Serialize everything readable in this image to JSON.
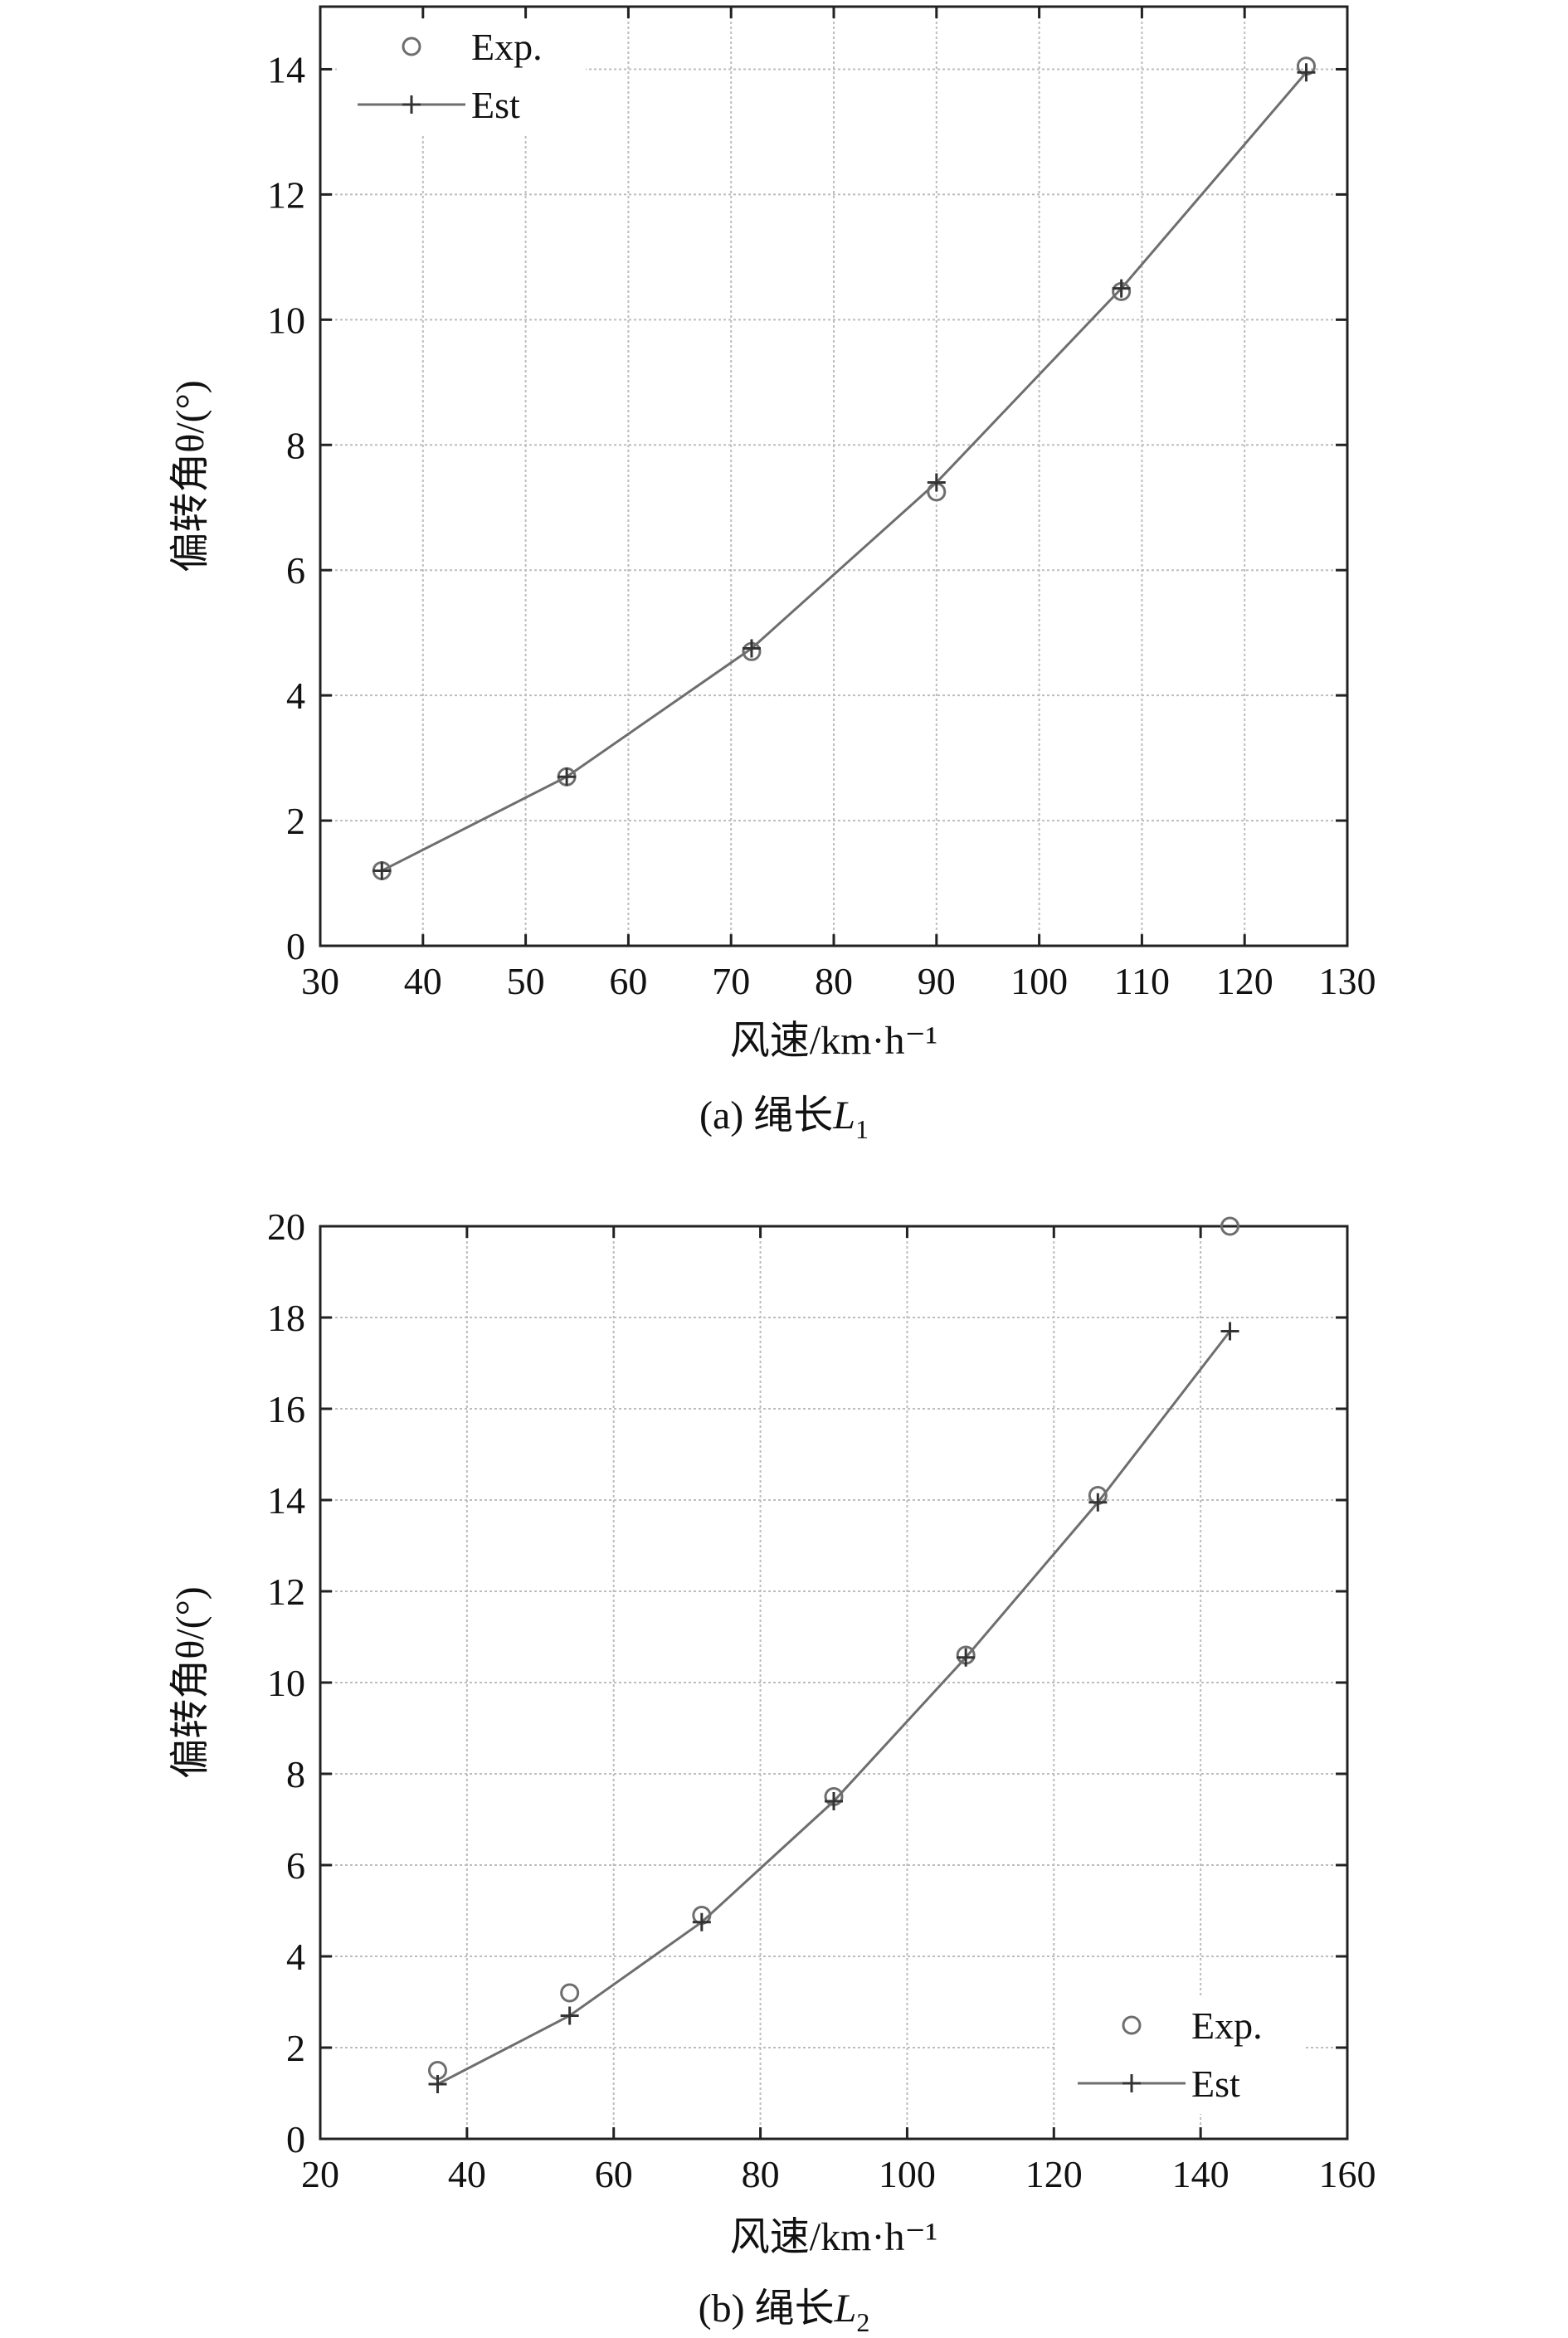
{
  "chart_data": [
    {
      "type": "line",
      "caption": "(a) 绳长L1",
      "caption_parts": {
        "prefix": "(a) 绳长",
        "var": "L",
        "sub": "1"
      },
      "xlabel": "风速/km·h⁻¹",
      "ylabel": "偏转角θ/(°)",
      "xlim": [
        30,
        130
      ],
      "ylim": [
        0,
        15
      ],
      "xticks": [
        30,
        40,
        50,
        60,
        70,
        80,
        90,
        100,
        110,
        120,
        130
      ],
      "yticks": [
        0,
        2,
        4,
        6,
        8,
        10,
        12,
        14
      ],
      "grid": true,
      "legend_position": "top-left",
      "series": [
        {
          "name": "Exp.",
          "marker": "circle",
          "line": false,
          "x": [
            36,
            54,
            72,
            90,
            108,
            126
          ],
          "y": [
            1.2,
            2.7,
            4.7,
            7.25,
            10.45,
            14.05
          ]
        },
        {
          "name": "Est",
          "marker": "plus",
          "line": true,
          "x": [
            36,
            54,
            72,
            90,
            108,
            126
          ],
          "y": [
            1.2,
            2.7,
            4.75,
            7.4,
            10.5,
            13.95
          ]
        }
      ]
    },
    {
      "type": "line",
      "caption": "(b) 绳长L2",
      "caption_parts": {
        "prefix": "(b) 绳长",
        "var": "L",
        "sub": "2"
      },
      "xlabel": "风速/km·h⁻¹",
      "ylabel": "偏转角θ/(°)",
      "xlim": [
        20,
        160
      ],
      "ylim": [
        0,
        20
      ],
      "xticks": [
        20,
        40,
        60,
        80,
        100,
        120,
        140,
        160
      ],
      "yticks": [
        0,
        2,
        4,
        6,
        8,
        10,
        12,
        14,
        16,
        18,
        20
      ],
      "grid": true,
      "legend_position": "bottom-right",
      "series": [
        {
          "name": "Exp.",
          "marker": "circle",
          "line": false,
          "x": [
            36,
            54,
            72,
            90,
            108,
            126,
            144
          ],
          "y": [
            1.5,
            3.2,
            4.9,
            7.5,
            10.6,
            14.1,
            20.0
          ]
        },
        {
          "name": "Est",
          "marker": "plus",
          "line": true,
          "x": [
            36,
            54,
            72,
            90,
            108,
            126,
            144
          ],
          "y": [
            1.2,
            2.7,
            4.75,
            7.4,
            10.55,
            13.95,
            17.7
          ]
        }
      ]
    }
  ],
  "colors": {
    "line": "#6e6e6e",
    "grid": "#bdbdbd",
    "axis": "#222222",
    "marker": "#6e6e6e"
  }
}
